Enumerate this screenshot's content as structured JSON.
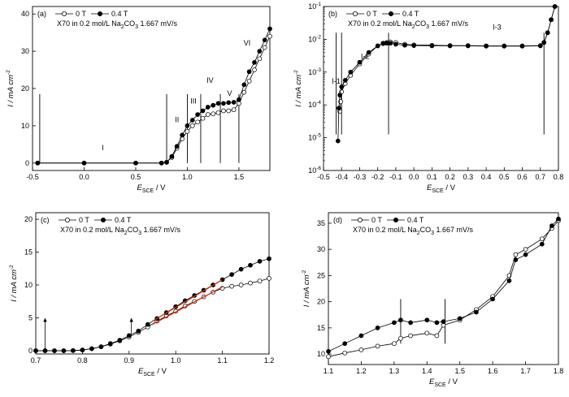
{
  "legend": {
    "label_0t": "0 T",
    "label_04t": "0.4 T"
  },
  "chart_data": [
    {
      "panel": "(a)",
      "type": "scatter",
      "subtitle_prefix": "X70 in 0.2 mol/L Na",
      "subtitle_sub": "2",
      "subtitle_mid": "CO",
      "subtitle_sub2": "3",
      "subtitle_suffix": " 1.667 mV/s",
      "xlabel_main": "E",
      "xlabel_sub": "SCE",
      "xlabel_unit": " / V",
      "ylabel_main": "I / mA cm",
      "ylabel_sup": "-2",
      "xlim": [
        -0.5,
        1.8
      ],
      "ylim": [
        -2,
        42
      ],
      "xticks": [
        -0.5,
        0.0,
        0.5,
        1.0,
        1.5
      ],
      "yticks": [
        0,
        10,
        20,
        30,
        40
      ],
      "tick_decimals": 1,
      "region_lines": [
        -0.43,
        0.8,
        1.0,
        1.13,
        1.32,
        1.5
      ],
      "region_labels": [
        {
          "text": "I",
          "x": 0.18,
          "y": 3.5
        },
        {
          "text": "II",
          "x": 0.9,
          "y": 11
        },
        {
          "text": "III",
          "x": 1.06,
          "y": 16
        },
        {
          "text": "IV",
          "x": 1.22,
          "y": 21.5
        },
        {
          "text": "V",
          "x": 1.41,
          "y": 18
        },
        {
          "text": "VI",
          "x": 1.58,
          "y": 31.5
        }
      ],
      "series": [
        {
          "name": "0 T",
          "marker": "open",
          "x": [
            -0.45,
            0.0,
            0.5,
            0.75,
            0.8,
            0.85,
            0.9,
            0.95,
            1.0,
            1.05,
            1.1,
            1.15,
            1.2,
            1.25,
            1.3,
            1.35,
            1.4,
            1.45,
            1.5,
            1.55,
            1.6,
            1.65,
            1.7,
            1.75,
            1.8
          ],
          "y": [
            0,
            0,
            0,
            0,
            0.2,
            1.5,
            4,
            6.5,
            8.5,
            10,
            11,
            12,
            13,
            13.2,
            13.5,
            14,
            14,
            14.3,
            16,
            19,
            22,
            25,
            28,
            31,
            34
          ]
        },
        {
          "name": "0.4 T",
          "marker": "filled",
          "x": [
            -0.45,
            0.0,
            0.5,
            0.75,
            0.8,
            0.85,
            0.9,
            0.95,
            1.0,
            1.05,
            1.1,
            1.15,
            1.2,
            1.25,
            1.3,
            1.35,
            1.4,
            1.45,
            1.5,
            1.55,
            1.6,
            1.65,
            1.7,
            1.75,
            1.8
          ],
          "y": [
            0,
            0,
            0,
            0,
            0.2,
            1.8,
            4.5,
            7.5,
            10,
            11.5,
            13,
            14,
            15,
            15.5,
            16,
            16,
            16.2,
            16.3,
            17,
            21,
            24.5,
            27,
            30,
            33,
            36
          ]
        }
      ]
    },
    {
      "panel": "(b)",
      "type": "scatter",
      "log_y": true,
      "subtitle_prefix": "X70 in 0.2 mol/L Na",
      "subtitle_sub": "2",
      "subtitle_mid": "CO",
      "subtitle_sub2": "3",
      "subtitle_suffix": " 1.667 mV/s",
      "xlabel_main": "E",
      "xlabel_sub": "SCE",
      "xlabel_unit": " / V",
      "ylabel_main": "I / mA cm",
      "ylabel_sup": "-2",
      "xlim": [
        -0.5,
        0.8
      ],
      "ylim_exp": [
        -6,
        -1
      ],
      "xticks": [
        -0.5,
        -0.4,
        -0.3,
        -0.2,
        -0.1,
        0.0,
        0.1,
        0.2,
        0.3,
        0.4,
        0.5,
        0.6,
        0.7,
        0.8
      ],
      "yticks_exp": [
        -6,
        -5,
        -4,
        -3,
        -2,
        -1
      ],
      "tick_decimals": 1,
      "region_lines": [
        -0.43,
        -0.4,
        -0.14,
        0.72
      ],
      "region_labels": [
        {
          "text": "I-1",
          "x": -0.43,
          "y_exp": -3.35
        },
        {
          "text": "I-2",
          "x": -0.27,
          "y_exp": -2.6
        },
        {
          "text": "I-3",
          "x": 0.46,
          "y_exp": -1.7
        }
      ],
      "series": [
        {
          "name": "0 T",
          "marker": "open",
          "x": [
            -0.41,
            -0.405,
            -0.4,
            -0.38,
            -0.35,
            -0.3,
            -0.25,
            -0.2,
            -0.17,
            -0.15,
            -0.13,
            -0.1,
            -0.05,
            0.0,
            0.1,
            0.2,
            0.3,
            0.4,
            0.5,
            0.6,
            0.7,
            0.72,
            0.74,
            0.76,
            0.78
          ],
          "y_exp": [
            -4.2,
            -3.9,
            -3.6,
            -3.35,
            -3.1,
            -2.75,
            -2.45,
            -2.2,
            -2.12,
            -2.1,
            -2.08,
            -2.1,
            -2.15,
            -2.17,
            -2.18,
            -2.19,
            -2.19,
            -2.2,
            -2.2,
            -2.2,
            -2.19,
            -2.1,
            -1.8,
            -1.4,
            -1.0
          ]
        },
        {
          "name": "0.4 T",
          "marker": "filled",
          "x": [
            -0.42,
            -0.415,
            -0.41,
            -0.4,
            -0.38,
            -0.35,
            -0.3,
            -0.25,
            -0.2,
            -0.17,
            -0.15,
            -0.13,
            -0.1,
            -0.05,
            0.0,
            0.1,
            0.2,
            0.3,
            0.4,
            0.5,
            0.6,
            0.7,
            0.72,
            0.74,
            0.76,
            0.78
          ],
          "y_exp": [
            -5.1,
            -4.1,
            -3.7,
            -3.45,
            -3.25,
            -3.0,
            -2.7,
            -2.4,
            -2.2,
            -2.13,
            -2.12,
            -2.12,
            -2.15,
            -2.18,
            -2.19,
            -2.2,
            -2.2,
            -2.2,
            -2.21,
            -2.21,
            -2.21,
            -2.2,
            -2.1,
            -1.8,
            -1.4,
            -1.0
          ]
        }
      ]
    },
    {
      "panel": "(c)",
      "type": "scatter",
      "subtitle_prefix": "X70 in 0.2 mol/L Na",
      "subtitle_sub": "2",
      "subtitle_mid": "CO",
      "subtitle_sub2": "3",
      "subtitle_suffix": " 1.667 mV/s",
      "xlabel_main": "E",
      "xlabel_sub": "SCE",
      "xlabel_unit": " / V",
      "ylabel_main": "I / mA cm",
      "ylabel_sup": "-2",
      "xlim": [
        0.7,
        1.2
      ],
      "ylim": [
        -0.5,
        21
      ],
      "xticks": [
        0.7,
        0.8,
        0.9,
        1.0,
        1.1,
        1.2
      ],
      "yticks": [
        0,
        5,
        10,
        15,
        20
      ],
      "tick_decimals": 1,
      "arrows": [
        {
          "x": 0.72,
          "y_from": 0,
          "y_to": 5
        },
        {
          "x": 0.905,
          "y_from": 2.5,
          "y_to": 5
        }
      ],
      "fit_color": "#cc3311",
      "fit_lines": [
        {
          "x": [
            0.95,
            1.1
          ],
          "y": [
            4.5,
            10.8
          ]
        },
        {
          "x": [
            0.95,
            1.1
          ],
          "y": [
            4.0,
            9.7
          ]
        }
      ],
      "series": [
        {
          "name": "0 T",
          "marker": "open",
          "x": [
            0.7,
            0.72,
            0.74,
            0.76,
            0.78,
            0.8,
            0.82,
            0.84,
            0.86,
            0.88,
            0.9,
            0.92,
            0.94,
            0.96,
            0.98,
            1.0,
            1.02,
            1.04,
            1.06,
            1.08,
            1.1,
            1.12,
            1.14,
            1.16,
            1.18,
            1.2
          ],
          "y": [
            0,
            0,
            0,
            0,
            0.02,
            0.1,
            0.3,
            0.6,
            1.0,
            1.5,
            2.1,
            2.8,
            3.6,
            4.5,
            5.3,
            6.0,
            6.8,
            7.5,
            8.2,
            8.9,
            9.5,
            9.8,
            10.0,
            10.3,
            10.6,
            11.0
          ]
        },
        {
          "name": "0.4 T",
          "marker": "filled",
          "x": [
            0.7,
            0.72,
            0.74,
            0.76,
            0.78,
            0.8,
            0.82,
            0.84,
            0.86,
            0.88,
            0.9,
            0.92,
            0.94,
            0.96,
            0.98,
            1.0,
            1.02,
            1.04,
            1.06,
            1.08,
            1.1,
            1.12,
            1.14,
            1.16,
            1.18,
            1.2
          ],
          "y": [
            0,
            0,
            0,
            0,
            0.02,
            0.1,
            0.3,
            0.6,
            1.1,
            1.6,
            2.3,
            3.0,
            4.0,
            4.9,
            5.8,
            6.7,
            7.6,
            8.4,
            9.2,
            10.0,
            10.8,
            11.6,
            12.4,
            13.0,
            13.6,
            14.0
          ]
        }
      ]
    },
    {
      "panel": "(d)",
      "type": "scatter",
      "subtitle_prefix": "X70 in 0.2 mol/L Na",
      "subtitle_sub": "2",
      "subtitle_mid": "CO",
      "subtitle_sub2": "3",
      "subtitle_suffix": " 1.667 mV/s",
      "xlabel_main": "E",
      "xlabel_sub": "SCE",
      "xlabel_unit": " / V",
      "ylabel_main": "I / mA cm",
      "ylabel_sup": "-2",
      "xlim": [
        1.1,
        1.8
      ],
      "ylim": [
        8,
        37
      ],
      "xticks": [
        1.1,
        1.2,
        1.3,
        1.4,
        1.5,
        1.6,
        1.7,
        1.8
      ],
      "yticks": [
        10,
        15,
        20,
        25,
        30,
        35
      ],
      "tick_decimals": 1,
      "region_lines": [
        1.32,
        1.455
      ],
      "series": [
        {
          "name": "0 T",
          "marker": "open",
          "x": [
            1.1,
            1.15,
            1.2,
            1.25,
            1.3,
            1.32,
            1.35,
            1.4,
            1.43,
            1.45,
            1.5,
            1.55,
            1.6,
            1.65,
            1.67,
            1.7,
            1.75,
            1.78,
            1.8
          ],
          "y": [
            9.5,
            10.2,
            10.8,
            11.5,
            12.0,
            13.0,
            13.5,
            14.0,
            13.5,
            15.5,
            16.5,
            18.5,
            21.0,
            25.0,
            29.0,
            30.0,
            32.0,
            34.0,
            35.5
          ]
        },
        {
          "name": "0.4 T",
          "marker": "filled",
          "x": [
            1.1,
            1.15,
            1.2,
            1.25,
            1.3,
            1.32,
            1.35,
            1.4,
            1.43,
            1.45,
            1.5,
            1.55,
            1.6,
            1.65,
            1.67,
            1.7,
            1.75,
            1.78,
            1.8
          ],
          "y": [
            10.5,
            12.0,
            13.5,
            15.0,
            16.0,
            16.5,
            16.0,
            16.5,
            16.0,
            16.2,
            16.8,
            18.0,
            20.5,
            24.0,
            28.0,
            29.0,
            31.0,
            34.5,
            35.8
          ]
        }
      ]
    }
  ]
}
